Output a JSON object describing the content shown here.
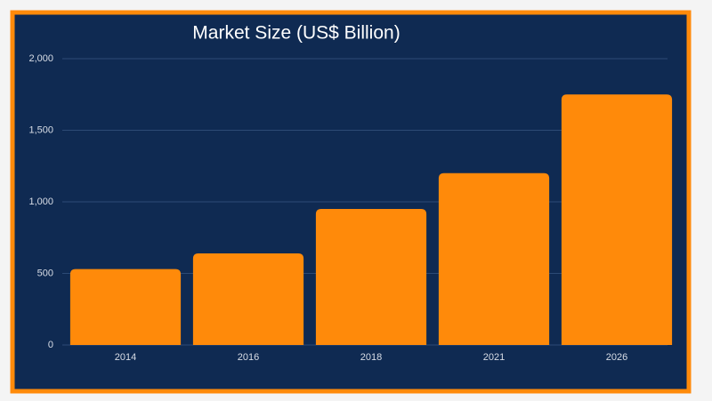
{
  "chart_data": {
    "type": "bar",
    "title": "Market Size (US$ Billion)",
    "categories": [
      "2014",
      "2016",
      "2018",
      "2021",
      "2026"
    ],
    "values": [
      530,
      640,
      950,
      1200,
      1750
    ],
    "color": "#ff8a0a",
    "ylim": [
      0,
      2000
    ],
    "yticks": [
      0,
      500,
      {
        "value": 1000,
        "label": "1,000"
      },
      {
        "value": 1500,
        "label": "1,500"
      },
      {
        "value": 2000,
        "label": "2,000"
      }
    ],
    "grid": true
  }
}
